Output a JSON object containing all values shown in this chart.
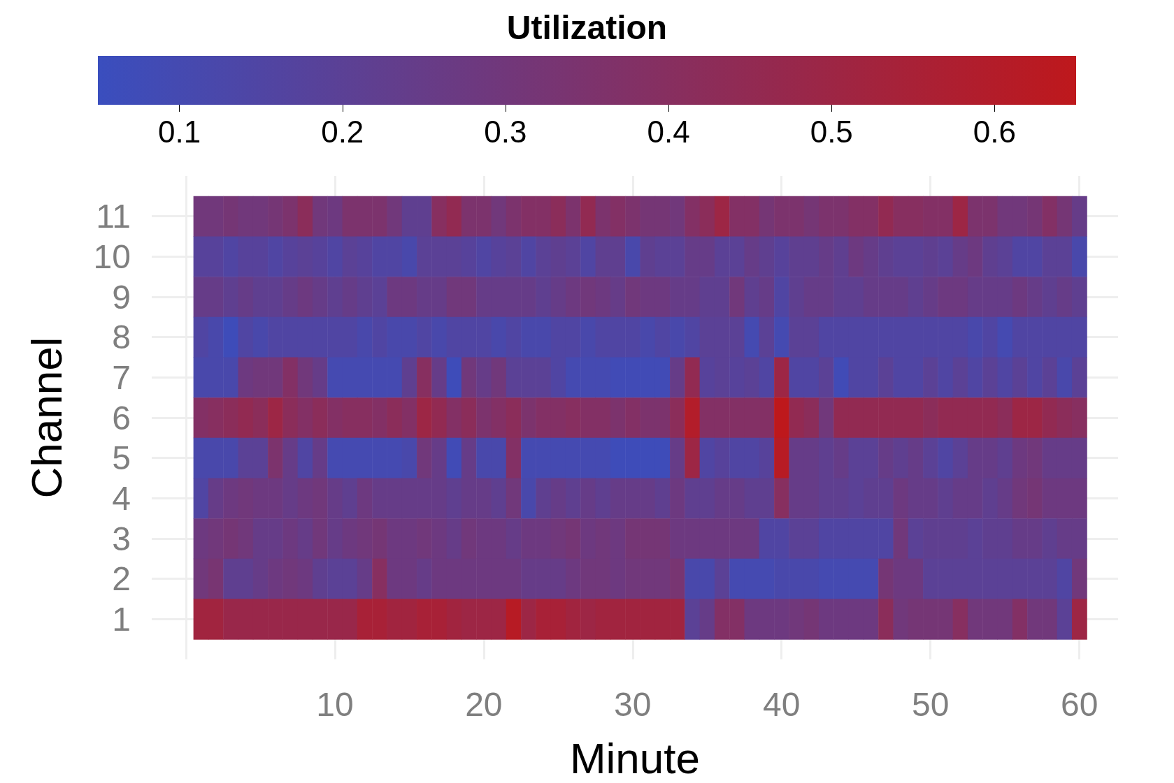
{
  "chart_data": {
    "type": "heatmap",
    "legend_title": "Utilization",
    "xlabel": "Minute",
    "ylabel": "Channel",
    "x": [
      1,
      2,
      3,
      4,
      5,
      6,
      7,
      8,
      9,
      10,
      11,
      12,
      13,
      14,
      15,
      16,
      17,
      18,
      19,
      20,
      21,
      22,
      23,
      24,
      25,
      26,
      27,
      28,
      29,
      30,
      31,
      32,
      33,
      34,
      35,
      36,
      37,
      38,
      39,
      40,
      41,
      42,
      43,
      44,
      45,
      46,
      47,
      48,
      49,
      50,
      51,
      52,
      53,
      54,
      55,
      56,
      57,
      58,
      59,
      60
    ],
    "xlim": [
      -2.3,
      62.6
    ],
    "xticks": [
      {
        "value": 0,
        "label": null
      },
      10,
      20,
      30,
      40,
      50,
      60
    ],
    "y_categories": [
      "11",
      "10",
      "9",
      "8",
      "7",
      "6",
      "5",
      "4",
      "3",
      "2",
      "1"
    ],
    "cells": [
      [
        0.3,
        0.3,
        0.32,
        0.3,
        0.3,
        0.32,
        0.35,
        0.42,
        0.3,
        0.28,
        0.35,
        0.35,
        0.35,
        0.3,
        0.22,
        0.22,
        0.4,
        0.45,
        0.35,
        0.35,
        0.3,
        0.35,
        0.38,
        0.38,
        0.42,
        0.35,
        0.45,
        0.35,
        0.38,
        0.35,
        0.32,
        0.32,
        0.3,
        0.38,
        0.42,
        0.5,
        0.38,
        0.38,
        0.32,
        0.35,
        0.35,
        0.32,
        0.35,
        0.35,
        0.38,
        0.38,
        0.45,
        0.4,
        0.4,
        0.38,
        0.38,
        0.5,
        0.35,
        0.35,
        0.3,
        0.3,
        0.32,
        0.38,
        0.32,
        0.25
      ],
      [
        0.18,
        0.18,
        0.15,
        0.18,
        0.18,
        0.15,
        0.18,
        0.2,
        0.18,
        0.15,
        0.2,
        0.18,
        0.15,
        0.15,
        0.12,
        0.2,
        0.2,
        0.2,
        0.18,
        0.15,
        0.18,
        0.2,
        0.15,
        0.2,
        0.22,
        0.2,
        0.15,
        0.22,
        0.22,
        0.12,
        0.22,
        0.2,
        0.2,
        0.25,
        0.25,
        0.2,
        0.2,
        0.25,
        0.22,
        0.18,
        0.22,
        0.22,
        0.25,
        0.22,
        0.28,
        0.25,
        0.22,
        0.2,
        0.2,
        0.22,
        0.2,
        0.25,
        0.28,
        0.22,
        0.2,
        0.15,
        0.15,
        0.2,
        0.2,
        0.12
      ],
      [
        0.25,
        0.25,
        0.22,
        0.25,
        0.22,
        0.22,
        0.25,
        0.28,
        0.25,
        0.22,
        0.25,
        0.22,
        0.2,
        0.28,
        0.28,
        0.25,
        0.25,
        0.3,
        0.3,
        0.25,
        0.25,
        0.25,
        0.25,
        0.22,
        0.25,
        0.28,
        0.3,
        0.28,
        0.25,
        0.3,
        0.28,
        0.28,
        0.25,
        0.25,
        0.22,
        0.22,
        0.3,
        0.22,
        0.25,
        0.15,
        0.22,
        0.25,
        0.25,
        0.22,
        0.22,
        0.25,
        0.25,
        0.25,
        0.22,
        0.25,
        0.28,
        0.28,
        0.25,
        0.25,
        0.25,
        0.28,
        0.25,
        0.22,
        0.25,
        0.22
      ],
      [
        0.15,
        0.12,
        0.07,
        0.15,
        0.12,
        0.15,
        0.15,
        0.15,
        0.15,
        0.15,
        0.15,
        0.12,
        0.15,
        0.12,
        0.12,
        0.15,
        0.12,
        0.15,
        0.15,
        0.15,
        0.12,
        0.15,
        0.12,
        0.12,
        0.15,
        0.15,
        0.12,
        0.15,
        0.15,
        0.15,
        0.12,
        0.15,
        0.12,
        0.15,
        0.2,
        0.2,
        0.2,
        0.1,
        0.2,
        0.1,
        0.2,
        0.2,
        0.15,
        0.15,
        0.15,
        0.15,
        0.15,
        0.15,
        0.15,
        0.15,
        0.15,
        0.15,
        0.12,
        0.15,
        0.1,
        0.15,
        0.15,
        0.15,
        0.15,
        0.15
      ],
      [
        0.12,
        0.12,
        0.12,
        0.28,
        0.3,
        0.3,
        0.38,
        0.3,
        0.25,
        0.1,
        0.1,
        0.1,
        0.1,
        0.1,
        0.22,
        0.4,
        0.25,
        0.07,
        0.3,
        0.25,
        0.3,
        0.2,
        0.2,
        0.2,
        0.15,
        0.1,
        0.1,
        0.1,
        0.08,
        0.08,
        0.08,
        0.08,
        0.25,
        0.45,
        0.18,
        0.2,
        0.18,
        0.2,
        0.15,
        0.5,
        0.15,
        0.15,
        0.2,
        0.08,
        0.15,
        0.15,
        0.2,
        0.15,
        0.15,
        0.2,
        0.15,
        0.2,
        0.15,
        0.2,
        0.15,
        0.2,
        0.15,
        0.2,
        0.12,
        0.2
      ],
      [
        0.38,
        0.4,
        0.42,
        0.45,
        0.42,
        0.5,
        0.42,
        0.38,
        0.42,
        0.38,
        0.4,
        0.4,
        0.38,
        0.42,
        0.38,
        0.5,
        0.45,
        0.38,
        0.42,
        0.35,
        0.38,
        0.42,
        0.35,
        0.38,
        0.38,
        0.4,
        0.38,
        0.38,
        0.35,
        0.38,
        0.35,
        0.35,
        0.42,
        0.6,
        0.38,
        0.38,
        0.38,
        0.38,
        0.38,
        0.65,
        0.45,
        0.42,
        0.3,
        0.45,
        0.45,
        0.45,
        0.45,
        0.45,
        0.45,
        0.42,
        0.45,
        0.45,
        0.45,
        0.45,
        0.42,
        0.5,
        0.5,
        0.45,
        0.42,
        0.4
      ],
      [
        0.12,
        0.12,
        0.12,
        0.2,
        0.2,
        0.35,
        0.25,
        0.15,
        0.25,
        0.1,
        0.1,
        0.1,
        0.1,
        0.1,
        0.12,
        0.3,
        0.25,
        0.08,
        0.25,
        0.12,
        0.12,
        0.38,
        0.1,
        0.1,
        0.1,
        0.1,
        0.1,
        0.1,
        0.07,
        0.07,
        0.07,
        0.07,
        0.25,
        0.5,
        0.15,
        0.18,
        0.15,
        0.15,
        0.18,
        0.62,
        0.25,
        0.25,
        0.22,
        0.25,
        0.2,
        0.2,
        0.25,
        0.22,
        0.25,
        0.2,
        0.15,
        0.2,
        0.25,
        0.25,
        0.22,
        0.28,
        0.3,
        0.25,
        0.25,
        0.25
      ],
      [
        0.15,
        0.25,
        0.28,
        0.3,
        0.28,
        0.28,
        0.25,
        0.28,
        0.3,
        0.25,
        0.22,
        0.28,
        0.25,
        0.25,
        0.25,
        0.25,
        0.25,
        0.22,
        0.25,
        0.25,
        0.22,
        0.3,
        0.12,
        0.22,
        0.25,
        0.22,
        0.25,
        0.22,
        0.25,
        0.25,
        0.25,
        0.22,
        0.28,
        0.22,
        0.22,
        0.25,
        0.25,
        0.22,
        0.22,
        0.4,
        0.25,
        0.25,
        0.22,
        0.22,
        0.2,
        0.22,
        0.22,
        0.28,
        0.25,
        0.25,
        0.22,
        0.25,
        0.25,
        0.22,
        0.25,
        0.3,
        0.32,
        0.28,
        0.28,
        0.28
      ],
      [
        0.28,
        0.3,
        0.32,
        0.3,
        0.25,
        0.25,
        0.28,
        0.25,
        0.3,
        0.25,
        0.28,
        0.3,
        0.32,
        0.28,
        0.28,
        0.3,
        0.28,
        0.25,
        0.3,
        0.28,
        0.28,
        0.25,
        0.28,
        0.28,
        0.3,
        0.32,
        0.28,
        0.3,
        0.28,
        0.32,
        0.32,
        0.32,
        0.28,
        0.28,
        0.28,
        0.28,
        0.28,
        0.28,
        0.15,
        0.15,
        0.2,
        0.2,
        0.15,
        0.15,
        0.15,
        0.15,
        0.15,
        0.3,
        0.2,
        0.22,
        0.22,
        0.22,
        0.2,
        0.22,
        0.22,
        0.25,
        0.25,
        0.22,
        0.25,
        0.25
      ],
      [
        0.3,
        0.33,
        0.22,
        0.22,
        0.25,
        0.28,
        0.3,
        0.28,
        0.22,
        0.2,
        0.2,
        0.25,
        0.4,
        0.28,
        0.28,
        0.25,
        0.28,
        0.28,
        0.28,
        0.28,
        0.28,
        0.28,
        0.25,
        0.25,
        0.25,
        0.28,
        0.3,
        0.3,
        0.28,
        0.3,
        0.3,
        0.3,
        0.33,
        0.12,
        0.12,
        0.2,
        0.1,
        0.1,
        0.1,
        0.12,
        0.12,
        0.12,
        0.1,
        0.1,
        0.1,
        0.1,
        0.32,
        0.28,
        0.28,
        0.2,
        0.2,
        0.2,
        0.2,
        0.2,
        0.2,
        0.2,
        0.2,
        0.2,
        0.15,
        0.3
      ],
      [
        0.52,
        0.52,
        0.48,
        0.48,
        0.48,
        0.48,
        0.48,
        0.48,
        0.48,
        0.48,
        0.48,
        0.55,
        0.55,
        0.52,
        0.52,
        0.55,
        0.55,
        0.52,
        0.5,
        0.5,
        0.5,
        0.62,
        0.5,
        0.55,
        0.55,
        0.52,
        0.5,
        0.52,
        0.52,
        0.52,
        0.52,
        0.52,
        0.52,
        0.2,
        0.25,
        0.38,
        0.38,
        0.28,
        0.28,
        0.28,
        0.3,
        0.32,
        0.28,
        0.28,
        0.28,
        0.28,
        0.42,
        0.3,
        0.32,
        0.32,
        0.32,
        0.4,
        0.3,
        0.3,
        0.3,
        0.38,
        0.3,
        0.3,
        0.2,
        0.5
      ]
    ],
    "clim": [
      0.05,
      0.65
    ],
    "cticks": [
      0.1,
      0.2,
      0.3,
      0.4,
      0.5,
      0.6
    ],
    "grid": true
  }
}
